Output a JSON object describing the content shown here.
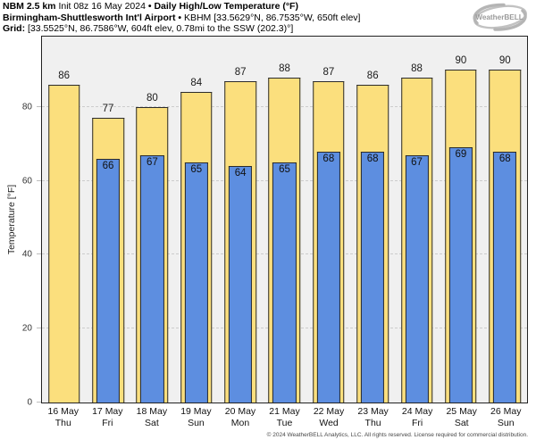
{
  "header": {
    "line1_bold_a": "NBM 2.5 km",
    "line1_regular": " Init 08z 16 May 2024 ",
    "line1_bold_b": "• Daily High/Low Temperature (°F)",
    "line2_bold": "Birmingham-Shuttlesworth Int'l Airport •",
    "line2_regular": " KBHM [33.5629°N, 86.7535°W, 650ft elev]",
    "line3_bold": "Grid:",
    "line3_regular": " [33.5525°N, 86.7586°W, 604ft elev, 0.78mi to the SSW (202.3)°]"
  },
  "logo": {
    "text": "WeatherBELL"
  },
  "chart_data": {
    "type": "bar",
    "title": "NBM 2.5 km Init 08z 16 May 2024 • Daily High/Low Temperature (°F)",
    "station": "Birmingham-Shuttlesworth Int'l Airport (KBHM)",
    "categories": [
      {
        "date": "16 May",
        "day": "Thu"
      },
      {
        "date": "17 May",
        "day": "Fri"
      },
      {
        "date": "18 May",
        "day": "Sat"
      },
      {
        "date": "19 May",
        "day": "Sun"
      },
      {
        "date": "20 May",
        "day": "Mon"
      },
      {
        "date": "21 May",
        "day": "Tue"
      },
      {
        "date": "22 May",
        "day": "Wed"
      },
      {
        "date": "23 May",
        "day": "Thu"
      },
      {
        "date": "24 May",
        "day": "Fri"
      },
      {
        "date": "25 May",
        "day": "Sat"
      },
      {
        "date": "26 May",
        "day": "Sun"
      }
    ],
    "series": [
      {
        "name": "Daily High",
        "color": "#fbdf7d",
        "values": [
          86,
          77,
          80,
          84,
          87,
          88,
          87,
          86,
          88,
          90,
          90
        ]
      },
      {
        "name": "Daily Low",
        "color": "#5d8ee0",
        "values": [
          null,
          66,
          67,
          65,
          64,
          65,
          68,
          68,
          67,
          69,
          68
        ]
      }
    ],
    "ylabel": "Temperature [°F]",
    "yticks": [
      0,
      20,
      40,
      60,
      80
    ],
    "ylim": [
      0,
      98.8
    ],
    "grid": "horizontal-dashed",
    "legend": "none",
    "plot_background": "#f0f0f0",
    "bar_border_color": "#2b2b2b"
  },
  "footer": {
    "copyright": "© 2024 WeatherBELL Analytics, LLC. All rights reserved. License required for commercial distribution."
  }
}
